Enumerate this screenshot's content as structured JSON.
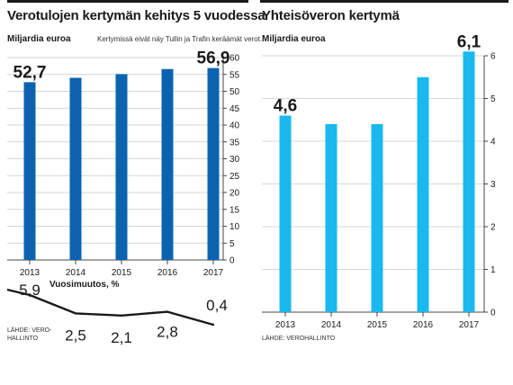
{
  "colors": {
    "left_bar": "#0b63b0",
    "right_bar": "#1ab8ef",
    "grid": "#c8c8c8",
    "text": "#1a1a1a",
    "line": "#1a1a1a"
  },
  "left": {
    "title": "Verotulojen kertymän kehitys 5 vuodessa",
    "subtitle": "Miljardia euroa",
    "note": "Kertymissä eivät näy Tullin ja Trafin keräämät verot.",
    "change_title": "Vuosimuutos, %",
    "source": "LÄHDE: VERO-\nHALLINTO"
  },
  "right": {
    "title": "Yhteisöveron kertymä",
    "subtitle": "Miljardia euroa",
    "source": "LÄHDE: VEROHALLINTO"
  },
  "chart_data": [
    {
      "type": "bar",
      "title": "Verotulojen kertymän kehitys 5 vuodessa",
      "ylabel": "Miljardia euroa",
      "categories": [
        "2013",
        "2014",
        "2015",
        "2016",
        "2017"
      ],
      "values": [
        52.7,
        54.0,
        55.1,
        56.6,
        56.9
      ],
      "value_labels": [
        {
          "index": 0,
          "text": "52,7"
        },
        {
          "index": 4,
          "text": "56,9"
        }
      ],
      "ylim": [
        0,
        60
      ],
      "yticks": [
        0,
        5,
        10,
        15,
        20,
        25,
        30,
        35,
        40,
        45,
        50,
        55,
        60
      ],
      "grid": true,
      "axis_side": "right"
    },
    {
      "type": "line",
      "title": "Vuosimuutos, %",
      "categories": [
        "2013",
        "2014",
        "2015",
        "2016",
        "2017"
      ],
      "values": [
        5.9,
        2.5,
        2.1,
        2.8,
        0.4
      ],
      "value_labels": [
        "5,9",
        "2,5",
        "2,1",
        "2,8",
        "0,4"
      ]
    },
    {
      "type": "bar",
      "title": "Yhteisöveron kertymä",
      "ylabel": "Miljardia euroa",
      "categories": [
        "2013",
        "2014",
        "2015",
        "2016",
        "2017"
      ],
      "values": [
        4.6,
        4.4,
        4.4,
        5.5,
        6.1
      ],
      "value_labels": [
        {
          "index": 0,
          "text": "4,6"
        },
        {
          "index": 4,
          "text": "6,1"
        }
      ],
      "ylim": [
        0,
        6
      ],
      "yticks": [
        0,
        1,
        2,
        3,
        4,
        5,
        6
      ],
      "grid": true,
      "axis_side": "right"
    }
  ]
}
